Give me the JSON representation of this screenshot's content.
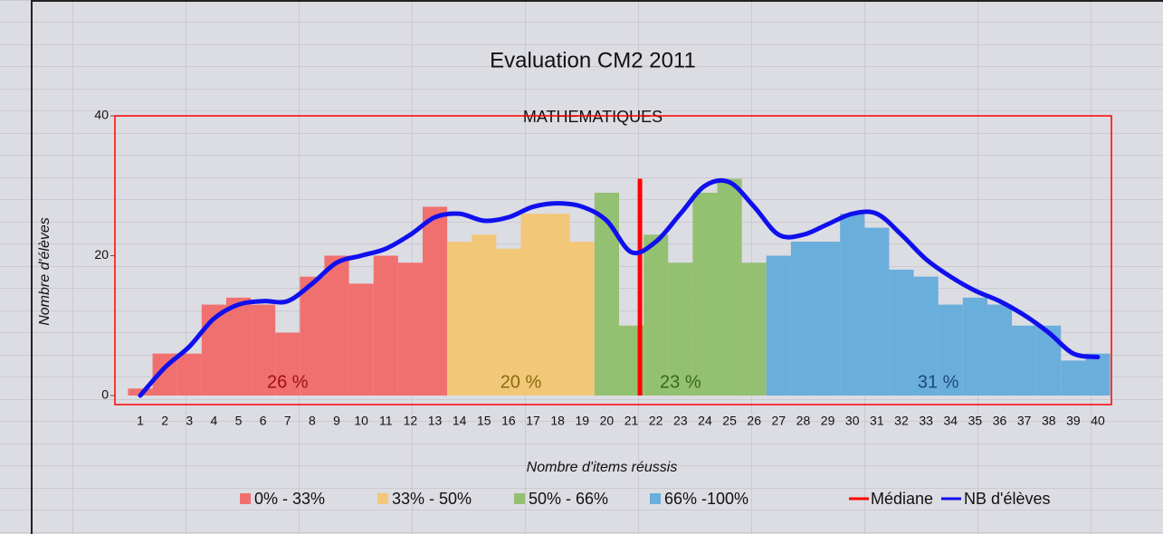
{
  "chart_data": {
    "type": "bar",
    "title": "Evaluation CM2 2011",
    "subtitle": "MATHEMATIQUES",
    "x_label": "Nombre d'items réussis",
    "y_label": "Nombre d'élèves",
    "categories": [
      1,
      2,
      3,
      4,
      5,
      6,
      7,
      8,
      9,
      10,
      11,
      12,
      13,
      14,
      15,
      16,
      17,
      18,
      19,
      20,
      21,
      22,
      23,
      24,
      25,
      26,
      27,
      28,
      29,
      30,
      31,
      32,
      33,
      34,
      35,
      36,
      37,
      38,
      39,
      40
    ],
    "ylim": [
      0,
      40
    ],
    "yticks": [
      0,
      20,
      40
    ],
    "series": [
      {
        "name": "0% - 33%",
        "color": "#f07070",
        "text_color": "#a01010",
        "share_label": "26 %",
        "values": [
          1,
          6,
          6,
          13,
          14,
          13,
          9,
          17,
          20,
          16,
          20,
          19,
          27,
          null,
          null,
          null,
          null,
          null,
          null,
          null,
          null,
          null,
          null,
          null,
          null,
          null,
          null,
          null,
          null,
          null,
          null,
          null,
          null,
          null,
          null,
          null,
          null,
          null,
          null,
          null
        ]
      },
      {
        "name": "33% - 50%",
        "color": "#f2c878",
        "text_color": "#8a6a10",
        "share_label": "20 %",
        "values": [
          null,
          null,
          null,
          null,
          null,
          null,
          null,
          null,
          null,
          null,
          null,
          null,
          null,
          22,
          23,
          21,
          26,
          26,
          22,
          null,
          null,
          null,
          null,
          null,
          null,
          null,
          null,
          null,
          null,
          null,
          null,
          null,
          null,
          null,
          null,
          null,
          null,
          null,
          null,
          null
        ]
      },
      {
        "name": "50% - 66%",
        "color": "#94c072",
        "text_color": "#3a6a14",
        "share_label": "23 %",
        "values": [
          null,
          null,
          null,
          null,
          null,
          null,
          null,
          null,
          null,
          null,
          null,
          null,
          null,
          null,
          null,
          null,
          null,
          null,
          null,
          29,
          10,
          23,
          19,
          29,
          31,
          19,
          null,
          null,
          null,
          null,
          null,
          null,
          null,
          null,
          null,
          null,
          null,
          null,
          null,
          null
        ]
      },
      {
        "name": "66% -100%",
        "color": "#6aaedc",
        "text_color": "#1a4a7a",
        "share_label": "31 %",
        "values": [
          null,
          null,
          null,
          null,
          null,
          null,
          null,
          null,
          null,
          null,
          null,
          null,
          null,
          null,
          null,
          null,
          null,
          null,
          null,
          null,
          null,
          null,
          null,
          null,
          null,
          null,
          20,
          22,
          22,
          26,
          24,
          18,
          17,
          13,
          14,
          13,
          10,
          10,
          5,
          6
        ]
      }
    ],
    "line": {
      "name": "NB d'élèves",
      "color": "#1010ee",
      "values": [
        0,
        4,
        7,
        11,
        13,
        13.5,
        13.5,
        16,
        19,
        20,
        21,
        23,
        25.5,
        26,
        25,
        25.5,
        27,
        27.5,
        27,
        25,
        20.5,
        22,
        26,
        30,
        30.5,
        27,
        23,
        23,
        24.5,
        26,
        26,
        23,
        19.5,
        17,
        15,
        13.5,
        11.5,
        9,
        6,
        5.5
      ]
    },
    "median": {
      "name": "Médiane",
      "color": "#ff0000",
      "x": 21.35,
      "y": [
        0,
        31
      ]
    }
  }
}
